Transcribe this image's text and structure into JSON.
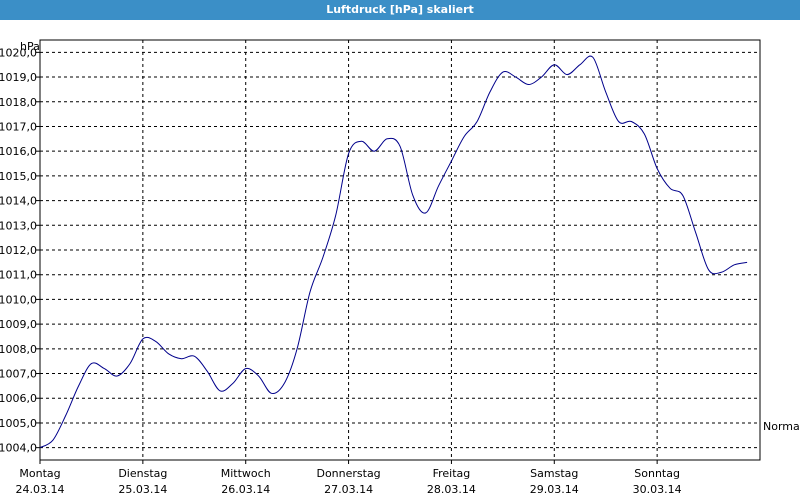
{
  "window": {
    "title": "Luftdruck [hPa] skaliert"
  },
  "chart_data": {
    "type": "line",
    "title": "Luftdruck [hPa] skaliert",
    "ylabel": "hPa",
    "ylim": [
      1003.5,
      1020.5
    ],
    "yticks": [
      1020,
      1019,
      1018,
      1017,
      1016,
      1015,
      1014,
      1013,
      1012,
      1011,
      1010,
      1009,
      1008,
      1007,
      1006,
      1005,
      1004
    ],
    "ytick_labels": [
      "1020,0",
      "1019,0",
      "1018,0",
      "1017,0",
      "1016,0",
      "1015,0",
      "1014,0",
      "1013,0",
      "1012,0",
      "1011,0",
      "1010,0",
      "1009,0",
      "1008,0",
      "1007,0",
      "1006,0",
      "1005,0",
      "1004,0"
    ],
    "days": [
      {
        "name": "Montag",
        "date": "24.03.14"
      },
      {
        "name": "Dienstag",
        "date": "25.03.14"
      },
      {
        "name": "Mittwoch",
        "date": "26.03.14"
      },
      {
        "name": "Donnerstag",
        "date": "27.03.14"
      },
      {
        "name": "Freitag",
        "date": "28.03.14"
      },
      {
        "name": "Samstag",
        "date": "29.03.14"
      },
      {
        "name": "Sonntag",
        "date": "30.03.14"
      }
    ],
    "xlim": [
      "24.03.14 00:00",
      "31.03.14 00:00"
    ],
    "grid": true,
    "series": [
      {
        "name": "Normal",
        "color": "#00008b",
        "points": [
          [
            "24.03.14 00:00",
            1004.0
          ],
          [
            "24.03.14 03:00",
            1004.3
          ],
          [
            "24.03.14 06:00",
            1005.3
          ],
          [
            "24.03.14 09:00",
            1006.5
          ],
          [
            "24.03.14 12:00",
            1007.4
          ],
          [
            "24.03.14 15:00",
            1007.2
          ],
          [
            "24.03.14 18:00",
            1006.9
          ],
          [
            "24.03.14 21:00",
            1007.4
          ],
          [
            "25.03.14 00:00",
            1008.4
          ],
          [
            "25.03.14 03:00",
            1008.3
          ],
          [
            "25.03.14 06:00",
            1007.8
          ],
          [
            "25.03.14 09:00",
            1007.6
          ],
          [
            "25.03.14 12:00",
            1007.7
          ],
          [
            "25.03.14 15:00",
            1007.1
          ],
          [
            "25.03.14 18:00",
            1006.3
          ],
          [
            "25.03.14 21:00",
            1006.6
          ],
          [
            "26.03.14 00:00",
            1007.2
          ],
          [
            "26.03.14 03:00",
            1006.9
          ],
          [
            "26.03.14 06:00",
            1006.2
          ],
          [
            "26.03.14 09:00",
            1006.6
          ],
          [
            "26.03.14 12:00",
            1008.0
          ],
          [
            "26.03.14 15:00",
            1010.3
          ],
          [
            "26.03.14 18:00",
            1011.7
          ],
          [
            "26.03.14 21:00",
            1013.4
          ],
          [
            "27.03.14 00:00",
            1015.9
          ],
          [
            "27.03.14 03:00",
            1016.4
          ],
          [
            "27.03.14 06:00",
            1016.0
          ],
          [
            "27.03.14 09:00",
            1016.5
          ],
          [
            "27.03.14 12:00",
            1016.2
          ],
          [
            "27.03.14 15:00",
            1014.2
          ],
          [
            "27.03.14 18:00",
            1013.5
          ],
          [
            "27.03.14 21:00",
            1014.6
          ],
          [
            "28.03.14 00:00",
            1015.6
          ],
          [
            "28.03.14 03:00",
            1016.6
          ],
          [
            "28.03.14 06:00",
            1017.2
          ],
          [
            "28.03.14 09:00",
            1018.4
          ],
          [
            "28.03.14 12:00",
            1019.2
          ],
          [
            "28.03.14 15:00",
            1019.0
          ],
          [
            "28.03.14 18:00",
            1018.7
          ],
          [
            "28.03.14 21:00",
            1019.0
          ],
          [
            "29.03.14 00:00",
            1019.5
          ],
          [
            "29.03.14 03:00",
            1019.1
          ],
          [
            "29.03.14 06:00",
            1019.5
          ],
          [
            "29.03.14 09:00",
            1019.8
          ],
          [
            "29.03.14 12:00",
            1018.4
          ],
          [
            "29.03.14 15:00",
            1017.2
          ],
          [
            "29.03.14 18:00",
            1017.2
          ],
          [
            "29.03.14 21:00",
            1016.7
          ],
          [
            "30.03.14 00:00",
            1015.3
          ],
          [
            "30.03.14 03:00",
            1014.5
          ],
          [
            "30.03.14 06:00",
            1014.2
          ],
          [
            "30.03.14 09:00",
            1012.7
          ],
          [
            "30.03.14 12:00",
            1011.2
          ],
          [
            "30.03.14 15:00",
            1011.1
          ],
          [
            "30.03.14 18:00",
            1011.4
          ],
          [
            "30.03.14 21:00",
            1011.5
          ]
        ]
      }
    ]
  }
}
